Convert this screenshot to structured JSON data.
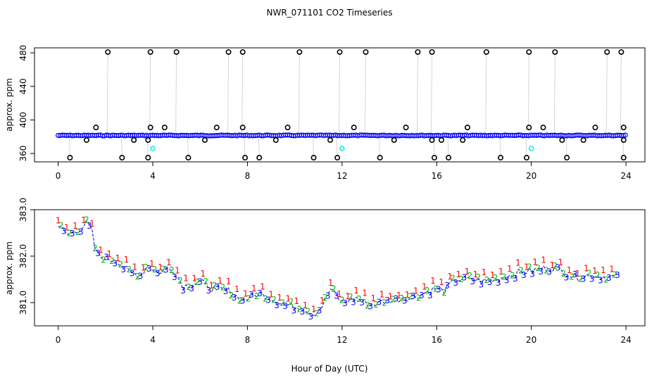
{
  "chart_data": {
    "title": "NWR_071101  CO2 Timeseries",
    "xlabel": "Hour of Day (UTC)",
    "panels": [
      {
        "id": "top",
        "type": "scatter",
        "ylabel": "approx. ppm",
        "xlim": [
          -1,
          24.8
        ],
        "ylim": [
          350,
          486
        ],
        "xticks": [
          "0",
          "4",
          "8",
          "12",
          "16",
          "20",
          "24"
        ],
        "xtick_values": [
          0,
          4,
          8,
          12,
          16,
          20,
          24
        ],
        "yticks": [
          "360",
          "400",
          "440",
          "480"
        ],
        "ytick_values": [
          360,
          400,
          440,
          480
        ],
        "baseline": 381.5,
        "baseline_color": "#0000ff",
        "outlier_color": "#000000",
        "spike_line_color": "#aaaaaa",
        "secondary_color": "#00e5e5",
        "high_outliers": [
          2.1,
          3.9,
          5.0,
          7.2,
          7.8,
          10.2,
          11.9,
          13.0,
          15.2,
          15.8,
          18.1,
          19.9,
          21.0,
          23.2,
          23.8
        ],
        "low_outliers": [
          0.5,
          2.7,
          3.8,
          5.5,
          7.9,
          8.5,
          10.8,
          11.8,
          13.6,
          15.9,
          16.5,
          18.7,
          19.8,
          21.5,
          23.9
        ],
        "mid_outliers": [
          {
            "x": 1.6,
            "y": 391
          },
          {
            "x": 1.2,
            "y": 376
          },
          {
            "x": 3.9,
            "y": 391
          },
          {
            "x": 3.8,
            "y": 376
          },
          {
            "x": 4.5,
            "y": 391
          },
          {
            "x": 3.2,
            "y": 376
          },
          {
            "x": 6.7,
            "y": 391
          },
          {
            "x": 6.2,
            "y": 376
          },
          {
            "x": 7.8,
            "y": 391
          },
          {
            "x": 9.7,
            "y": 391
          },
          {
            "x": 9.2,
            "y": 376
          },
          {
            "x": 11.5,
            "y": 376
          },
          {
            "x": 12.5,
            "y": 391
          },
          {
            "x": 14.7,
            "y": 391
          },
          {
            "x": 14.2,
            "y": 376
          },
          {
            "x": 15.8,
            "y": 376
          },
          {
            "x": 16.2,
            "y": 376
          },
          {
            "x": 17.3,
            "y": 391
          },
          {
            "x": 17.1,
            "y": 376
          },
          {
            "x": 19.9,
            "y": 391
          },
          {
            "x": 20.5,
            "y": 391
          },
          {
            "x": 21.3,
            "y": 376
          },
          {
            "x": 22.2,
            "y": 376
          },
          {
            "x": 22.7,
            "y": 391
          },
          {
            "x": 23.9,
            "y": 391
          },
          {
            "x": 23.9,
            "y": 376
          }
        ],
        "secondary_points": [
          {
            "x": 4.0,
            "y": 366
          },
          {
            "x": 12.0,
            "y": 366
          },
          {
            "x": 20.0,
            "y": 366
          }
        ]
      },
      {
        "id": "bottom",
        "type": "scatter",
        "ylabel": "approx. ppm",
        "xlim": [
          -1,
          24.8
        ],
        "ylim": [
          380.5,
          383.0
        ],
        "xticks": [
          "0",
          "4",
          "8",
          "12",
          "16",
          "20",
          "24"
        ],
        "xtick_values": [
          0,
          4,
          8,
          12,
          16,
          20,
          24
        ],
        "yticks": [
          "381.0",
          "382.0",
          "383.0"
        ],
        "ytick_values": [
          381.0,
          382.0,
          383.0
        ],
        "series": [
          {
            "name": "1",
            "color": "#ff0000"
          },
          {
            "name": "2",
            "color": "#00bb00"
          },
          {
            "name": "3",
            "color": "#0000ff"
          }
        ],
        "trend": [
          {
            "x": 0.0,
            "y": 382.65
          },
          {
            "x": 0.4,
            "y": 382.45
          },
          {
            "x": 0.8,
            "y": 382.55
          },
          {
            "x": 1.2,
            "y": 382.7
          },
          {
            "x": 1.4,
            "y": 382.6
          },
          {
            "x": 1.6,
            "y": 382.05
          },
          {
            "x": 2.0,
            "y": 381.95
          },
          {
            "x": 2.5,
            "y": 381.9
          },
          {
            "x": 3.0,
            "y": 381.65
          },
          {
            "x": 3.5,
            "y": 381.6
          },
          {
            "x": 3.8,
            "y": 381.8
          },
          {
            "x": 4.2,
            "y": 381.65
          },
          {
            "x": 4.8,
            "y": 381.75
          },
          {
            "x": 5.3,
            "y": 381.35
          },
          {
            "x": 6.0,
            "y": 381.45
          },
          {
            "x": 6.5,
            "y": 381.3
          },
          {
            "x": 7.2,
            "y": 381.25
          },
          {
            "x": 7.8,
            "y": 381.05
          },
          {
            "x": 8.5,
            "y": 381.2
          },
          {
            "x": 9.0,
            "y": 381.1
          },
          {
            "x": 9.6,
            "y": 380.95
          },
          {
            "x": 10.3,
            "y": 380.9
          },
          {
            "x": 10.8,
            "y": 380.75
          },
          {
            "x": 11.2,
            "y": 380.95
          },
          {
            "x": 11.5,
            "y": 381.3
          },
          {
            "x": 12.0,
            "y": 381.0
          },
          {
            "x": 12.6,
            "y": 381.1
          },
          {
            "x": 13.2,
            "y": 380.95
          },
          {
            "x": 14.0,
            "y": 381.05
          },
          {
            "x": 14.6,
            "y": 381.1
          },
          {
            "x": 15.2,
            "y": 381.15
          },
          {
            "x": 15.9,
            "y": 381.3
          },
          {
            "x": 16.3,
            "y": 381.25
          },
          {
            "x": 16.8,
            "y": 381.5
          },
          {
            "x": 17.5,
            "y": 381.5
          },
          {
            "x": 18.2,
            "y": 381.45
          },
          {
            "x": 18.8,
            "y": 381.55
          },
          {
            "x": 19.5,
            "y": 381.65
          },
          {
            "x": 20.2,
            "y": 381.7
          },
          {
            "x": 20.8,
            "y": 381.75
          },
          {
            "x": 21.3,
            "y": 381.7
          },
          {
            "x": 21.8,
            "y": 381.55
          },
          {
            "x": 22.5,
            "y": 381.6
          },
          {
            "x": 23.2,
            "y": 381.55
          },
          {
            "x": 23.7,
            "y": 381.55
          }
        ]
      }
    ]
  }
}
